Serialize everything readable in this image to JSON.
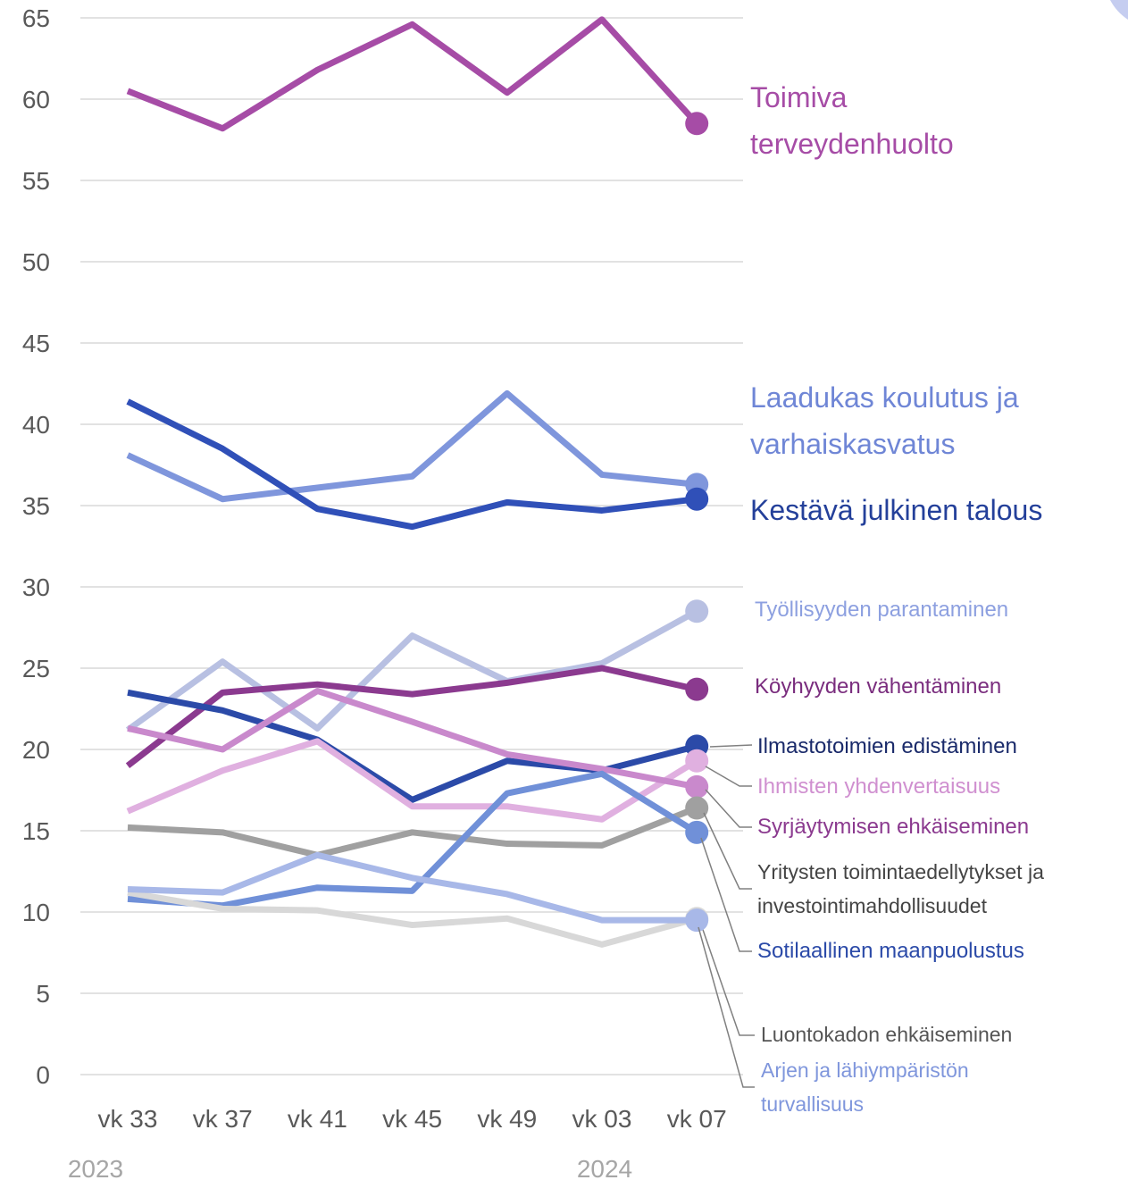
{
  "chart_data": {
    "type": "line",
    "categories": [
      "vk 33",
      "vk 37",
      "vk 41",
      "vk 45",
      "vk 49",
      "vk 03",
      "vk 07"
    ],
    "x_group_labels": [
      "2023",
      "2024"
    ],
    "ylim": [
      0,
      65
    ],
    "yticks": [
      0,
      5,
      10,
      15,
      20,
      25,
      30,
      35,
      40,
      45,
      50,
      55,
      60,
      65
    ],
    "grid": true,
    "series": [
      {
        "name": "Toimiva terveydenhuolto",
        "color": "#a64ca6",
        "values": [
          60.5,
          58.2,
          61.8,
          64.6,
          60.4,
          64.9,
          58.5
        ]
      },
      {
        "name": "Laadukas koulutus ja varhaiskasvatus",
        "color": "#7f96dc",
        "values": [
          38.1,
          35.4,
          36.1,
          36.8,
          41.9,
          36.9,
          36.3
        ]
      },
      {
        "name": "Kestävä julkinen talous",
        "color": "#3050b8",
        "values": [
          41.4,
          38.5,
          34.8,
          33.7,
          35.2,
          34.7,
          35.4
        ]
      },
      {
        "name": "Työllisyyden parantaminen",
        "color": "#b8c0e2",
        "values": [
          21.2,
          25.4,
          21.3,
          27.0,
          24.2,
          25.3,
          28.5
        ]
      },
      {
        "name": "Köyhyyden vähentäminen",
        "color": "#8b3a8f",
        "values": [
          19.0,
          23.5,
          24.0,
          23.4,
          24.1,
          25.0,
          23.7
        ]
      },
      {
        "name": "Ilmastotoimien edistäminen",
        "color": "#2b4aa8",
        "values": [
          23.5,
          22.4,
          20.6,
          16.9,
          19.3,
          18.7,
          20.2
        ]
      },
      {
        "name": "Ihmisten yhdenvertaisuus",
        "color": "#e0b0e0",
        "values": [
          16.2,
          18.7,
          20.5,
          16.5,
          16.5,
          15.7,
          19.3
        ]
      },
      {
        "name": "Syrjäytymisen ehkäiseminen",
        "color": "#c989cc",
        "values": [
          21.3,
          20.0,
          23.6,
          21.7,
          19.7,
          18.8,
          17.7
        ]
      },
      {
        "name": "Yritysten toimintaedellytykset ja investointimahdollisuudet",
        "color": "#a0a0a0",
        "values": [
          15.2,
          14.9,
          13.5,
          14.9,
          14.2,
          14.1,
          16.4
        ]
      },
      {
        "name": "Sotilaallinen maanpuolustus",
        "color": "#7090d8",
        "values": [
          10.8,
          10.4,
          11.5,
          11.3,
          17.3,
          18.5,
          14.9
        ]
      },
      {
        "name": "Luontokadon ehkäiseminen",
        "color": "#d8d8d8",
        "values": [
          11.2,
          10.2,
          10.1,
          9.2,
          9.6,
          8.0,
          9.6
        ]
      },
      {
        "name": "Arjen ja lähiympäristön turvallisuus",
        "color": "#a8b8e8",
        "values": [
          11.4,
          11.2,
          13.5,
          12.1,
          11.1,
          9.5,
          9.5
        ]
      }
    ]
  }
}
